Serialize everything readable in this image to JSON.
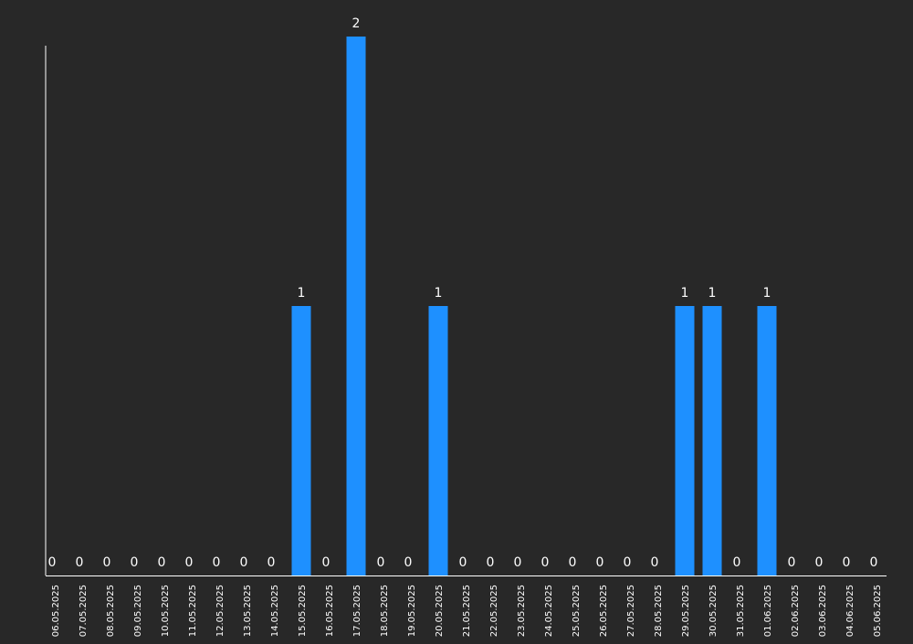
{
  "chart_data": {
    "type": "bar",
    "title": "",
    "xlabel": "",
    "ylabel": "",
    "ylim": [
      0,
      2
    ],
    "grid": false,
    "legend": "none",
    "categories": [
      "06.05.2025",
      "07.05.2025",
      "08.05.2025",
      "09.05.2025",
      "10.05.2025",
      "11.05.2025",
      "12.05.2025",
      "13.05.2025",
      "14.05.2025",
      "15.05.2025",
      "16.05.2025",
      "17.05.2025",
      "18.05.2025",
      "19.05.2025",
      "20.05.2025",
      "21.05.2025",
      "22.05.2025",
      "23.05.2025",
      "24.05.2025",
      "25.05.2025",
      "26.05.2025",
      "27.05.2025",
      "28.05.2025",
      "29.05.2025",
      "30.05.2025",
      "31.05.2025",
      "01.06.2025",
      "02.06.2025",
      "03.06.2025",
      "04.06.2025",
      "05.06.2025"
    ],
    "values": [
      0,
      0,
      0,
      0,
      0,
      0,
      0,
      0,
      0,
      1,
      0,
      2,
      0,
      0,
      1,
      0,
      0,
      0,
      0,
      0,
      0,
      0,
      0,
      1,
      1,
      0,
      1,
      0,
      0,
      0,
      0
    ],
    "colors": {
      "background": "#282828",
      "bar": "#1e90ff",
      "text": "#ffffff",
      "axis": "#ffffff"
    }
  }
}
